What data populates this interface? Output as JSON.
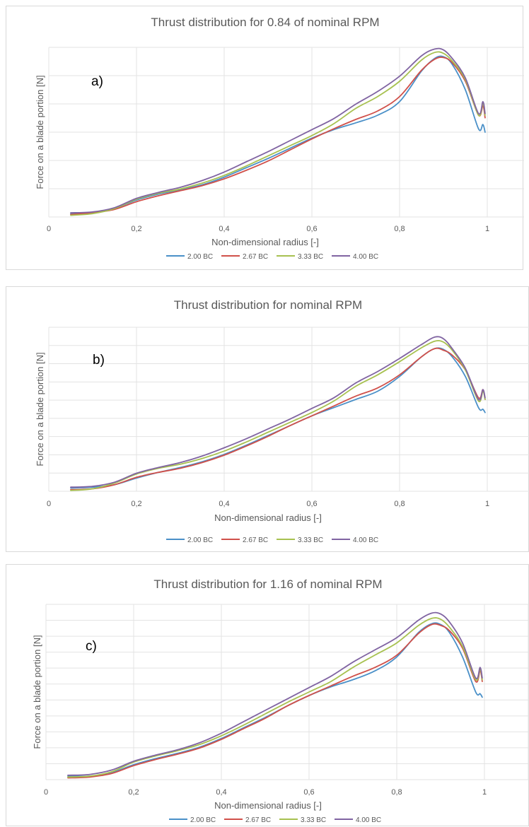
{
  "series_colors": {
    "2.00 BC": "#4a90c8",
    "2.67 BC": "#d0504a",
    "3.33 BC": "#a7c150",
    "4.00 BC": "#8064a2"
  },
  "chart_data": [
    {
      "type": "line",
      "title": "Thrust distribution for 0.84 of nominal RPM",
      "panel_label": "a)",
      "xlabel": "Non-dimensional radius [-]",
      "ylabel": "Force on a blade portion [N]",
      "xlim": [
        0,
        1.1
      ],
      "ylim": [
        0,
        1
      ],
      "x_ticks": [
        "0",
        "0,2",
        "0,4",
        "0,6",
        "0,8",
        "1"
      ],
      "y_tick_labels_shown": false,
      "grid": true,
      "legend_position": "bottom",
      "series": [
        {
          "name": "2.00 BC",
          "x": [
            0.05,
            0.1,
            0.15,
            0.2,
            0.25,
            0.3,
            0.35,
            0.4,
            0.45,
            0.5,
            0.55,
            0.6,
            0.65,
            0.7,
            0.75,
            0.8,
            0.85,
            0.88,
            0.9,
            0.92,
            0.95,
            0.98,
            0.99,
            0.995
          ],
          "y": [
            0.02,
            0.025,
            0.05,
            0.1,
            0.135,
            0.16,
            0.19,
            0.235,
            0.29,
            0.345,
            0.405,
            0.465,
            0.515,
            0.555,
            0.6,
            0.68,
            0.86,
            0.935,
            0.945,
            0.9,
            0.75,
            0.52,
            0.545,
            0.5
          ]
        },
        {
          "name": "2.67 BC",
          "x": [
            0.05,
            0.1,
            0.15,
            0.2,
            0.25,
            0.3,
            0.35,
            0.4,
            0.45,
            0.5,
            0.55,
            0.6,
            0.65,
            0.7,
            0.75,
            0.8,
            0.85,
            0.88,
            0.9,
            0.92,
            0.95,
            0.98,
            0.99,
            0.995
          ],
          "y": [
            0.015,
            0.025,
            0.045,
            0.09,
            0.125,
            0.155,
            0.185,
            0.225,
            0.275,
            0.33,
            0.395,
            0.46,
            0.52,
            0.575,
            0.625,
            0.71,
            0.865,
            0.93,
            0.94,
            0.91,
            0.8,
            0.6,
            0.655,
            0.585
          ]
        },
        {
          "name": "3.33 BC",
          "x": [
            0.05,
            0.1,
            0.15,
            0.2,
            0.25,
            0.3,
            0.35,
            0.4,
            0.45,
            0.5,
            0.55,
            0.6,
            0.65,
            0.7,
            0.75,
            0.8,
            0.85,
            0.88,
            0.9,
            0.92,
            0.95,
            0.98,
            0.99,
            0.995
          ],
          "y": [
            0.01,
            0.02,
            0.05,
            0.105,
            0.14,
            0.165,
            0.2,
            0.245,
            0.3,
            0.36,
            0.42,
            0.48,
            0.55,
            0.64,
            0.71,
            0.8,
            0.925,
            0.97,
            0.965,
            0.92,
            0.81,
            0.6,
            0.67,
            0.6
          ]
        },
        {
          "name": "4.00 BC",
          "x": [
            0.05,
            0.1,
            0.15,
            0.2,
            0.25,
            0.3,
            0.35,
            0.4,
            0.45,
            0.5,
            0.55,
            0.6,
            0.65,
            0.7,
            0.75,
            0.8,
            0.85,
            0.88,
            0.9,
            0.92,
            0.95,
            0.98,
            0.99,
            0.995
          ],
          "y": [
            0.025,
            0.03,
            0.055,
            0.11,
            0.145,
            0.175,
            0.215,
            0.265,
            0.325,
            0.385,
            0.45,
            0.515,
            0.58,
            0.665,
            0.74,
            0.83,
            0.95,
            0.99,
            0.985,
            0.935,
            0.82,
            0.61,
            0.68,
            0.61
          ]
        }
      ]
    },
    {
      "type": "line",
      "title": "Thrust distribution for nominal RPM",
      "panel_label": "b)",
      "xlabel": "Non-dimensional radius [-]",
      "ylabel": "Force on a blade portion [N]",
      "xlim": [
        0,
        1.1
      ],
      "ylim": [
        0,
        1
      ],
      "x_ticks": [
        "0",
        "0,2",
        "0,4",
        "0,6",
        "0,8",
        "1"
      ],
      "y_tick_labels_shown": false,
      "grid": true,
      "legend_position": "bottom",
      "series": [
        {
          "name": "2.00 BC",
          "x": [
            0.05,
            0.1,
            0.15,
            0.2,
            0.25,
            0.3,
            0.35,
            0.4,
            0.45,
            0.5,
            0.55,
            0.6,
            0.65,
            0.7,
            0.75,
            0.8,
            0.85,
            0.88,
            0.9,
            0.92,
            0.95,
            0.98,
            0.99,
            0.995
          ],
          "y": [
            0.02,
            0.025,
            0.04,
            0.08,
            0.115,
            0.145,
            0.18,
            0.225,
            0.28,
            0.34,
            0.4,
            0.46,
            0.51,
            0.56,
            0.61,
            0.7,
            0.82,
            0.87,
            0.865,
            0.82,
            0.7,
            0.51,
            0.5,
            0.48
          ]
        },
        {
          "name": "2.67 BC",
          "x": [
            0.05,
            0.1,
            0.15,
            0.2,
            0.25,
            0.3,
            0.35,
            0.4,
            0.45,
            0.5,
            0.55,
            0.6,
            0.65,
            0.7,
            0.75,
            0.8,
            0.85,
            0.88,
            0.9,
            0.92,
            0.95,
            0.98,
            0.99,
            0.995
          ],
          "y": [
            0.01,
            0.015,
            0.04,
            0.085,
            0.115,
            0.14,
            0.175,
            0.22,
            0.275,
            0.335,
            0.4,
            0.46,
            0.52,
            0.58,
            0.63,
            0.71,
            0.82,
            0.87,
            0.86,
            0.83,
            0.74,
            0.57,
            0.62,
            0.56
          ]
        },
        {
          "name": "3.33 BC",
          "x": [
            0.05,
            0.1,
            0.15,
            0.2,
            0.25,
            0.3,
            0.35,
            0.4,
            0.45,
            0.5,
            0.55,
            0.6,
            0.65,
            0.7,
            0.75,
            0.8,
            0.85,
            0.88,
            0.9,
            0.92,
            0.95,
            0.98,
            0.99,
            0.995
          ],
          "y": [
            0.005,
            0.015,
            0.05,
            0.105,
            0.14,
            0.165,
            0.2,
            0.245,
            0.3,
            0.36,
            0.42,
            0.48,
            0.55,
            0.64,
            0.71,
            0.79,
            0.875,
            0.915,
            0.91,
            0.86,
            0.74,
            0.55,
            0.61,
            0.56
          ]
        },
        {
          "name": "4.00 BC",
          "x": [
            0.05,
            0.1,
            0.15,
            0.2,
            0.25,
            0.3,
            0.35,
            0.4,
            0.45,
            0.5,
            0.55,
            0.6,
            0.65,
            0.7,
            0.75,
            0.8,
            0.85,
            0.88,
            0.9,
            0.92,
            0.95,
            0.98,
            0.99,
            0.995
          ],
          "y": [
            0.025,
            0.03,
            0.055,
            0.11,
            0.145,
            0.175,
            0.215,
            0.265,
            0.32,
            0.38,
            0.44,
            0.505,
            0.57,
            0.66,
            0.73,
            0.81,
            0.895,
            0.94,
            0.93,
            0.87,
            0.75,
            0.56,
            0.62,
            0.57
          ]
        }
      ]
    },
    {
      "type": "line",
      "title": "Thrust distribution for 1.16 of nominal RPM",
      "panel_label": "c)",
      "xlabel": "Non-dimensional radius [-]",
      "ylabel": "Force on a blade portion [N]",
      "xlim": [
        0,
        1.1
      ],
      "ylim": [
        0,
        1
      ],
      "x_ticks": [
        "0",
        "0,2",
        "0,4",
        "0,6",
        "0,8",
        "1"
      ],
      "y_tick_labels_shown": false,
      "grid": true,
      "legend_position": "bottom",
      "series": [
        {
          "name": "2.00 BC",
          "x": [
            0.05,
            0.1,
            0.15,
            0.2,
            0.25,
            0.3,
            0.35,
            0.4,
            0.45,
            0.5,
            0.55,
            0.6,
            0.65,
            0.7,
            0.75,
            0.8,
            0.85,
            0.88,
            0.9,
            0.92,
            0.95,
            0.98,
            0.99,
            0.995
          ],
          "y": [
            0.02,
            0.02,
            0.04,
            0.085,
            0.12,
            0.15,
            0.185,
            0.235,
            0.295,
            0.355,
            0.42,
            0.48,
            0.53,
            0.57,
            0.62,
            0.7,
            0.84,
            0.89,
            0.885,
            0.84,
            0.7,
            0.5,
            0.49,
            0.47
          ]
        },
        {
          "name": "2.67 BC",
          "x": [
            0.05,
            0.1,
            0.15,
            0.2,
            0.25,
            0.3,
            0.35,
            0.4,
            0.45,
            0.5,
            0.55,
            0.6,
            0.65,
            0.7,
            0.75,
            0.8,
            0.85,
            0.88,
            0.9,
            0.92,
            0.95,
            0.98,
            0.99,
            0.995
          ],
          "y": [
            0.01,
            0.015,
            0.035,
            0.08,
            0.115,
            0.145,
            0.18,
            0.23,
            0.29,
            0.35,
            0.42,
            0.48,
            0.535,
            0.59,
            0.64,
            0.71,
            0.835,
            0.885,
            0.88,
            0.85,
            0.75,
            0.56,
            0.62,
            0.56
          ]
        },
        {
          "name": "3.33 BC",
          "x": [
            0.05,
            0.1,
            0.15,
            0.2,
            0.25,
            0.3,
            0.35,
            0.4,
            0.45,
            0.5,
            0.55,
            0.6,
            0.65,
            0.7,
            0.75,
            0.8,
            0.85,
            0.88,
            0.9,
            0.92,
            0.95,
            0.98,
            0.99,
            0.995
          ],
          "y": [
            0.015,
            0.02,
            0.045,
            0.1,
            0.135,
            0.165,
            0.2,
            0.25,
            0.31,
            0.375,
            0.44,
            0.5,
            0.56,
            0.64,
            0.71,
            0.78,
            0.88,
            0.92,
            0.915,
            0.87,
            0.76,
            0.57,
            0.63,
            0.57
          ]
        },
        {
          "name": "4.00 BC",
          "x": [
            0.05,
            0.1,
            0.15,
            0.2,
            0.25,
            0.3,
            0.35,
            0.4,
            0.45,
            0.5,
            0.55,
            0.6,
            0.65,
            0.7,
            0.75,
            0.8,
            0.85,
            0.88,
            0.9,
            0.92,
            0.95,
            0.98,
            0.99,
            0.995
          ],
          "y": [
            0.025,
            0.03,
            0.055,
            0.105,
            0.14,
            0.17,
            0.21,
            0.265,
            0.33,
            0.395,
            0.46,
            0.525,
            0.59,
            0.67,
            0.74,
            0.81,
            0.91,
            0.95,
            0.945,
            0.9,
            0.78,
            0.58,
            0.64,
            0.58
          ]
        }
      ]
    }
  ]
}
